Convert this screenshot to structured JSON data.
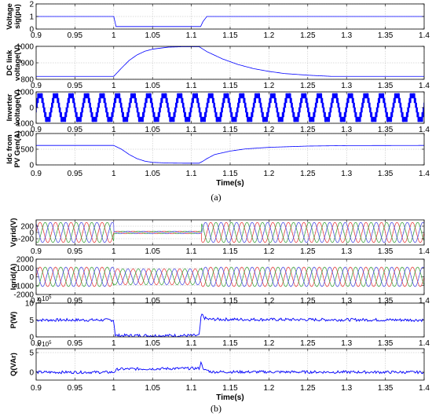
{
  "figure": {
    "captions": [
      "(a)",
      "(b)"
    ],
    "x_axis": {
      "label": "Time(s)",
      "range": [
        0.9,
        1.4
      ],
      "ticks": [
        "0.9",
        "0.95",
        "1",
        "1.05",
        "1.1",
        "1.15",
        "1.2",
        "1.25",
        "1.3",
        "1.35",
        "1.4"
      ]
    }
  },
  "chart_data": [
    {
      "type": "line",
      "panel": "a",
      "ylabel_lines": [
        "Voltage",
        "sig(pu)"
      ],
      "ylim": [
        0,
        2
      ],
      "yticks": [
        "0",
        "1",
        "2"
      ],
      "grid": true,
      "color": "#0000ff",
      "series": [
        {
          "x": [
            0.9,
            1.0,
            1.003,
            1.112,
            1.115,
            1.12,
            1.4
          ],
          "y": [
            1,
            1,
            0.2,
            0.2,
            0.6,
            1,
            1
          ]
        }
      ]
    },
    {
      "type": "line",
      "panel": "a",
      "ylabel_lines": [
        "DC link",
        "voltage(V)"
      ],
      "ylim": [
        800,
        1000
      ],
      "yticks": [
        "800",
        "900",
        "1000"
      ],
      "grid": true,
      "color": "#0000ff",
      "series": [
        {
          "x": [
            0.9,
            1.0,
            1.01,
            1.02,
            1.03,
            1.04,
            1.05,
            1.07,
            1.09,
            1.11,
            1.12,
            1.14,
            1.16,
            1.18,
            1.2,
            1.22,
            1.25,
            1.28,
            1.4
          ],
          "y": [
            818,
            818,
            868,
            915,
            948,
            970,
            983,
            995,
            998,
            998,
            968,
            924,
            890,
            865,
            848,
            835,
            825,
            818,
            818
          ]
        }
      ]
    },
    {
      "type": "line",
      "panel": "a",
      "ylabel_lines": [
        "Inverter",
        "voltage(V)"
      ],
      "ylim": [
        -1000,
        1000
      ],
      "yticks": [
        "-1000",
        "0",
        "1000"
      ],
      "grid": true,
      "color": "#0000ff",
      "waveform": {
        "kind": "multilevel",
        "amplitude": 900,
        "frequency": 50
      }
    },
    {
      "type": "line",
      "panel": "a",
      "ylabel_lines": [
        "Idc from",
        "PV Gen(A)"
      ],
      "ylim": [
        0,
        1000
      ],
      "yticks": [
        "0",
        "500",
        "1000"
      ],
      "grid": true,
      "color": "#0000ff",
      "series": [
        {
          "x": [
            0.9,
            1.0,
            1.01,
            1.02,
            1.03,
            1.04,
            1.05,
            1.07,
            1.09,
            1.11,
            1.115,
            1.12,
            1.13,
            1.15,
            1.17,
            1.2,
            1.25,
            1.3,
            1.4
          ],
          "y": [
            620,
            620,
            500,
            330,
            200,
            120,
            80,
            60,
            55,
            55,
            120,
            200,
            330,
            440,
            510,
            560,
            600,
            615,
            620
          ]
        }
      ]
    },
    {
      "type": "line",
      "panel": "b",
      "ylabel_lines": [
        "Vgrid(V)"
      ],
      "ylim": [
        -400,
        400
      ],
      "yticks": [
        "-200",
        "0",
        "200"
      ],
      "grid": true,
      "waveform": {
        "kind": "three-phase",
        "frequency": 50,
        "amplitude": 320,
        "dip_amplitude": 40,
        "dip": [
          1.0,
          1.113
        ]
      },
      "series_colors": [
        "#e52c2c",
        "#2a9a2a",
        "#3a3adf"
      ]
    },
    {
      "type": "line",
      "panel": "b",
      "ylabel_lines": [
        "Igrid(A)"
      ],
      "ylim": [
        -2000,
        2000
      ],
      "yticks": [
        "-2000",
        "-1000",
        "0",
        "1000",
        "2000"
      ],
      "grid": true,
      "waveform": {
        "kind": "three-phase",
        "frequency": 50,
        "amplitude": 1100,
        "dip_amplitude": 900,
        "dip": [
          1.0,
          1.113
        ]
      },
      "series_colors": [
        "#e52c2c",
        "#2a9a2a",
        "#3a3adf"
      ]
    },
    {
      "type": "line",
      "panel": "b",
      "ylabel_lines": [
        "P(W)"
      ],
      "ylim": [
        0,
        10
      ],
      "yticks": [
        "0",
        "5",
        "10"
      ],
      "exponent": "x 10",
      "exponent_power": "5",
      "grid": true,
      "color": "#0000ff",
      "series": [
        {
          "x": [
            0.9,
            1.0,
            1.002,
            1.11,
            1.113,
            1.117,
            1.122,
            1.4
          ],
          "y": [
            5,
            5,
            0.4,
            0.4,
            6.8,
            5.6,
            5.2,
            5
          ]
        }
      ],
      "noise": 0.45
    },
    {
      "type": "line",
      "panel": "b",
      "ylabel_lines": [
        "Q(VAr)"
      ],
      "ylim": [
        -2,
        6
      ],
      "yticks": [
        "0",
        "5"
      ],
      "exponent": "x 10",
      "exponent_power": "5",
      "grid": true,
      "color": "#0000ff",
      "series": [
        {
          "x": [
            0.9,
            1.0,
            1.005,
            1.11,
            1.113,
            1.116,
            1.12,
            1.125,
            1.4
          ],
          "y": [
            0,
            0,
            0.8,
            1.0,
            2.7,
            0.4,
            0.6,
            0.1,
            0
          ]
        }
      ],
      "noise": 0.35
    }
  ]
}
